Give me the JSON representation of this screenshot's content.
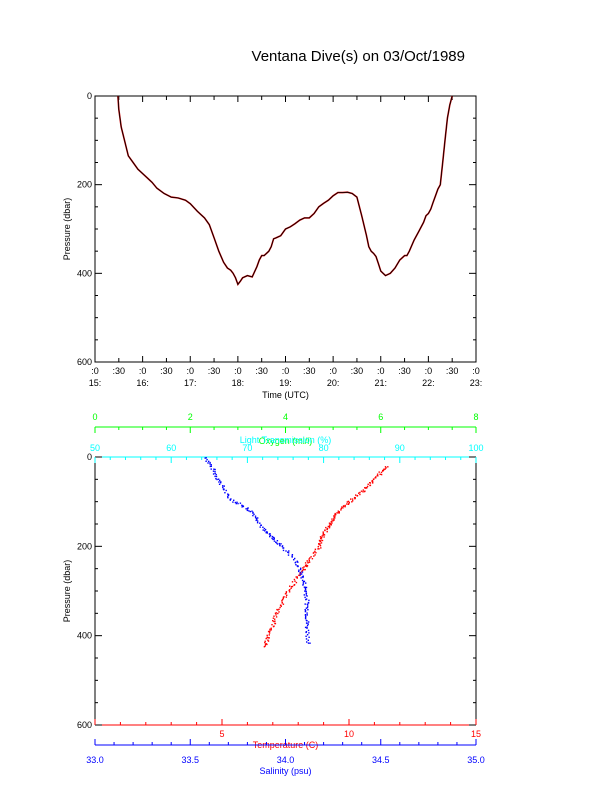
{
  "title": "Ventana Dive(s) on 03/Oct/1989",
  "colors": {
    "axis": "#000000",
    "temperature": "#ff0000",
    "salinity": "#0000ff",
    "oxygen": "#00ff00",
    "transmission": "#00ffff",
    "track_dark": "#000000",
    "track_red": "#cc0000"
  },
  "chart_data": [
    {
      "type": "line",
      "title": "Ventana Dive(s) on 03/Oct/1989",
      "xlabel": "Time (UTC)",
      "ylabel": "Pressure (dbar)",
      "y_reversed": true,
      "ylim": [
        600,
        0
      ],
      "y_ticks": [
        0,
        200,
        400,
        600
      ],
      "x_tick_top": [
        ":0",
        ":30",
        ":0",
        ":30",
        ":0",
        ":30",
        ":0",
        ":30",
        ":0",
        ":30",
        ":0",
        ":30",
        ":0",
        ":30",
        ":0",
        ":30",
        ":0"
      ],
      "x_tick_bottom": [
        "15:",
        "16:",
        "17:",
        "18:",
        "19:",
        "20:",
        "21:",
        "22:",
        "23:"
      ],
      "xlim_hours": [
        15.0,
        23.0
      ],
      "series": [
        {
          "x_hours": [
            15.48,
            15.5,
            15.55,
            15.62,
            15.7,
            15.8,
            15.9,
            16.0,
            16.1,
            16.2,
            16.3,
            16.45,
            16.6,
            16.75,
            16.9,
            17.0,
            17.15,
            17.3,
            17.4,
            17.5,
            17.6,
            17.7,
            17.78,
            17.85,
            17.9,
            17.95,
            18.0,
            18.05,
            18.1,
            18.2,
            18.3,
            18.4,
            18.45,
            18.5,
            18.55,
            18.6,
            18.65,
            18.7,
            18.75,
            18.8,
            18.9,
            19.0,
            19.1,
            19.2,
            19.3,
            19.4,
            19.5,
            19.6,
            19.7,
            19.8,
            19.9,
            20.0,
            20.1,
            20.2,
            20.3,
            20.4,
            20.5,
            20.6,
            20.7,
            20.75,
            20.8,
            20.85,
            20.9,
            20.95,
            21.0,
            21.05,
            21.1,
            21.2,
            21.3,
            21.4,
            21.5,
            21.55,
            21.6,
            21.7,
            21.8,
            21.9,
            21.95,
            22.0,
            22.05,
            22.1,
            22.15,
            22.2,
            22.25,
            22.3,
            22.35,
            22.4,
            22.45,
            22.5
          ],
          "y": [
            0,
            30,
            70,
            100,
            135,
            150,
            165,
            175,
            185,
            195,
            208,
            220,
            228,
            230,
            235,
            243,
            260,
            275,
            290,
            320,
            350,
            375,
            388,
            393,
            400,
            410,
            425,
            418,
            410,
            405,
            408,
            385,
            370,
            360,
            360,
            355,
            350,
            340,
            322,
            320,
            315,
            300,
            295,
            288,
            280,
            275,
            275,
            265,
            250,
            242,
            235,
            225,
            218,
            218,
            217,
            220,
            228,
            270,
            315,
            340,
            350,
            355,
            362,
            378,
            395,
            400,
            405,
            400,
            388,
            370,
            360,
            360,
            350,
            325,
            305,
            285,
            270,
            265,
            255,
            240,
            225,
            210,
            200,
            150,
            100,
            50,
            20,
            0
          ]
        }
      ]
    },
    {
      "type": "scatter",
      "xlabel": "Temperature (C)",
      "ylabel": "Pressure (dbar)",
      "y_reversed": true,
      "ylim": [
        600,
        0
      ],
      "y_ticks": [
        0,
        200,
        400,
        600
      ],
      "axes": [
        {
          "label": "Temperature (C)",
          "range": [
            0,
            15
          ],
          "ticks": [
            5,
            10,
            15
          ],
          "position": "bottom",
          "color": "#ff0000"
        },
        {
          "label": "Salinity (psu)",
          "range": [
            33.0,
            35.0
          ],
          "ticks": [
            "33.0",
            "33.5",
            "34.0",
            "34.5",
            "35.0"
          ],
          "position": "bottom",
          "color": "#0000ff"
        },
        {
          "label": "Oxygen (ml/l)",
          "range": [
            0,
            8
          ],
          "ticks": [
            0,
            2,
            4,
            6,
            8
          ],
          "position": "top",
          "color": "#00ff00"
        },
        {
          "label": "Light Transmission (%)",
          "range": [
            50,
            100
          ],
          "ticks": [
            50,
            60,
            70,
            80,
            90,
            100
          ],
          "position": "top",
          "color": "#00ffff"
        }
      ],
      "series": [
        {
          "x_temperature": [
            11.5,
            11.1,
            10.8,
            10.4,
            10.0,
            9.6,
            9.3,
            9.1,
            8.9,
            8.8,
            8.4,
            8.2,
            7.8,
            7.5,
            7.2,
            7.0,
            6.8,
            6.7
          ],
          "y": [
            20,
            40,
            60,
            80,
            100,
            120,
            140,
            160,
            180,
            200,
            230,
            250,
            280,
            310,
            340,
            370,
            400,
            425
          ]
        },
        {
          "x_salinity": [
            33.58,
            33.62,
            33.66,
            33.7,
            33.78,
            33.84,
            33.88,
            33.93,
            33.98,
            34.05,
            34.08,
            34.1,
            34.11,
            34.11,
            34.11,
            34.12
          ],
          "y": [
            0,
            30,
            60,
            90,
            110,
            130,
            160,
            180,
            200,
            230,
            260,
            290,
            320,
            350,
            380,
            420
          ]
        }
      ]
    }
  ]
}
